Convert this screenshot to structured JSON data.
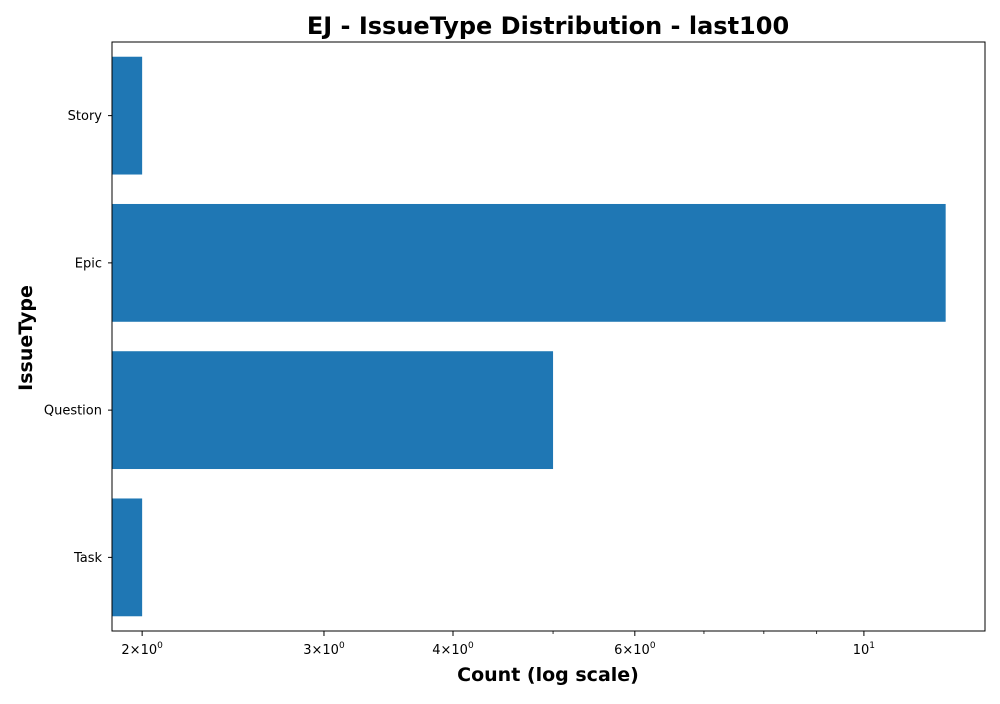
{
  "chart_data": {
    "type": "bar",
    "orientation": "horizontal",
    "title": "EJ - IssueType Distribution - last100",
    "xlabel": "Count (log scale)",
    "ylabel": "IssueType",
    "categories": [
      "Story",
      "Epic",
      "Question",
      "Task"
    ],
    "values": [
      2,
      12,
      5,
      2
    ],
    "x_scale": "log",
    "xlim": [
      1.87,
      13.1
    ],
    "x_ticks": [
      {
        "value": 2,
        "mantissa": "2",
        "exponent": "0"
      },
      {
        "value": 3,
        "mantissa": "3",
        "exponent": "0"
      },
      {
        "value": 4,
        "mantissa": "4",
        "exponent": "0"
      },
      {
        "value": 6,
        "mantissa": "6",
        "exponent": "0"
      },
      {
        "value": 10,
        "mantissa": "10",
        "exponent": "1"
      }
    ],
    "x_minor_ticks": [
      5,
      7,
      8,
      9
    ],
    "bar_color": "#1f77b4",
    "grid": false,
    "legend": false
  }
}
